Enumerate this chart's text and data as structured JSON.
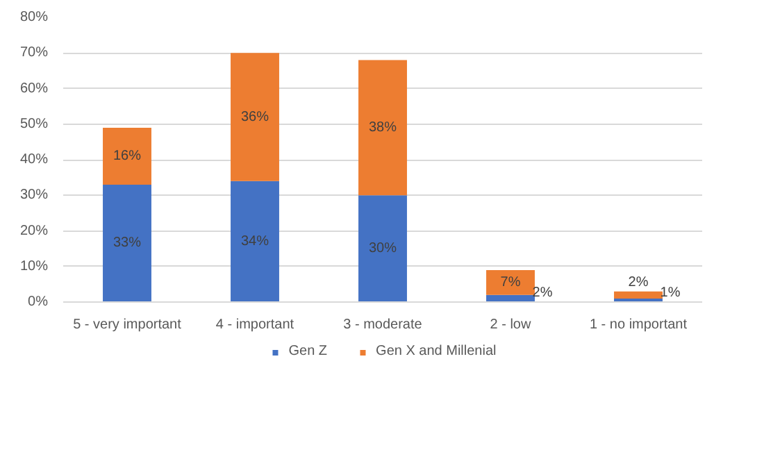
{
  "chart_data": {
    "type": "bar",
    "stacked": true,
    "categories": [
      "5 - very important",
      "4 - important",
      "3 - moderate",
      "2 - low",
      "1 - no important"
    ],
    "series": [
      {
        "name": "Gen Z",
        "color": "#4472c4",
        "values": [
          33,
          34,
          30,
          2,
          1
        ],
        "value_labels": [
          "33%",
          "34%",
          "30%",
          "2%",
          "1%"
        ]
      },
      {
        "name": "Gen X and Millenial",
        "color": "#ed7d31",
        "values": [
          16,
          36,
          38,
          7,
          2
        ],
        "value_labels": [
          "16%",
          "36%",
          "38%",
          "7%",
          "2%"
        ]
      }
    ],
    "ylim": [
      0,
      80
    ],
    "yticks": [
      {
        "value": 0,
        "label": "0%"
      },
      {
        "value": 10,
        "label": "10%"
      },
      {
        "value": 20,
        "label": "20%"
      },
      {
        "value": 30,
        "label": "30%"
      },
      {
        "value": 40,
        "label": "40%"
      },
      {
        "value": 50,
        "label": "50%"
      },
      {
        "value": 60,
        "label": "60%"
      },
      {
        "value": 70,
        "label": "70%"
      },
      {
        "value": 80,
        "label": "80%"
      }
    ],
    "grid": "y",
    "legend": "bottom",
    "data_labels": true
  }
}
